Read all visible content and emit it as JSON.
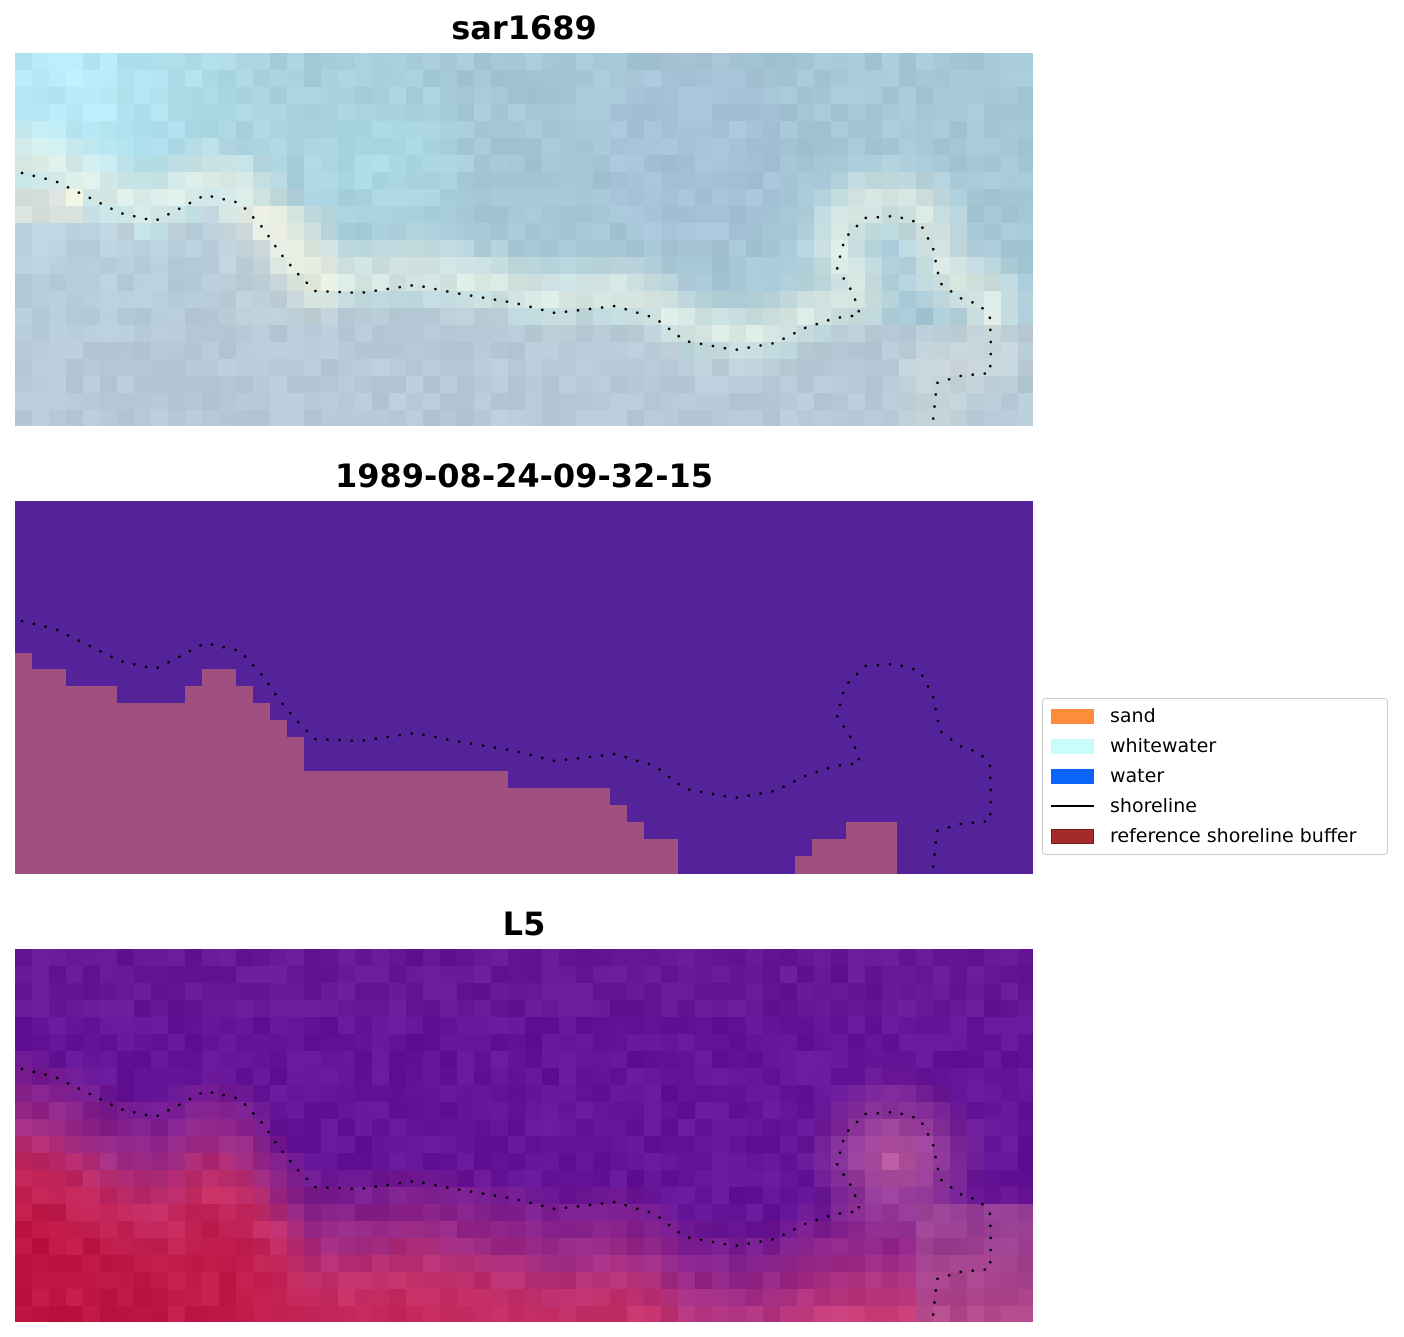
{
  "panels": [
    {
      "title": "sar1689",
      "style": "sar"
    },
    {
      "title": "1989-08-24-09-32-15",
      "style": "class"
    },
    {
      "title": "L5",
      "style": "prob"
    }
  ],
  "legend": {
    "items": [
      {
        "label": "sand",
        "kind": "patch",
        "color": "#ff8c3a"
      },
      {
        "label": "whitewater",
        "kind": "patch",
        "color": "#c8fdfc"
      },
      {
        "label": "water",
        "kind": "patch",
        "color": "#0a64fa"
      },
      {
        "label": "shoreline",
        "kind": "line",
        "color": "#000000"
      },
      {
        "label": "reference shoreline buffer",
        "kind": "patch",
        "color": "#a52a2a"
      }
    ]
  },
  "colors": {
    "class_water": "#54239a",
    "class_land": "#a0507f",
    "shoreline_dots": "#000000"
  }
}
